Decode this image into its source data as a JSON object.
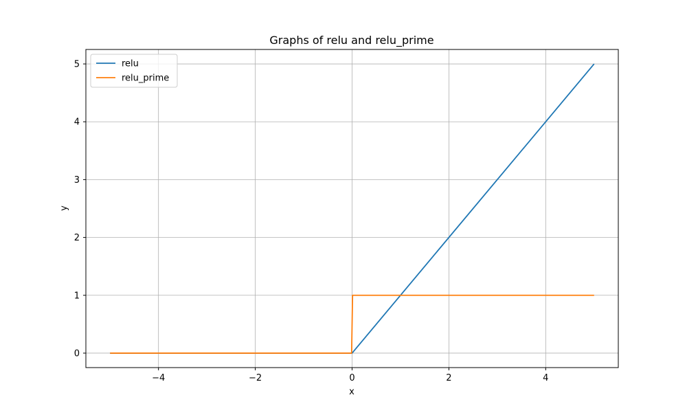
{
  "chart_data": {
    "type": "line",
    "title": "Graphs of relu and relu_prime",
    "xlabel": "x",
    "ylabel": "y",
    "xlim": [
      -5.5,
      5.5
    ],
    "ylim": [
      -0.25,
      5.25
    ],
    "xticks": [
      -4,
      -2,
      0,
      2,
      4
    ],
    "xtick_labels": [
      "−4",
      "−2",
      "0",
      "2",
      "4"
    ],
    "yticks": [
      0,
      1,
      2,
      3,
      4,
      5
    ],
    "ytick_labels": [
      "0",
      "1",
      "2",
      "3",
      "4",
      "5"
    ],
    "grid": true,
    "legend_position": "top-left",
    "series": [
      {
        "name": "relu",
        "color": "#1f77b4",
        "x": [
          -5,
          0,
          5
        ],
        "y": [
          0,
          0,
          5
        ]
      },
      {
        "name": "relu_prime",
        "color": "#ff7f0e",
        "x": [
          -5,
          -0.01,
          0.01,
          5
        ],
        "y": [
          0,
          0,
          1,
          1
        ]
      }
    ]
  }
}
